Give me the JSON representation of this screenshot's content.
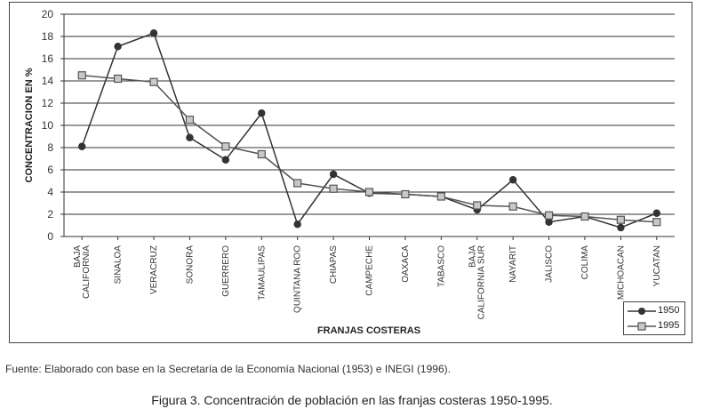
{
  "chart_data": {
    "type": "line",
    "ylabel": "CONCENTRACION EN %",
    "xlabel": "FRANJAS COSTERAS",
    "ylim": [
      0,
      20
    ],
    "yticks": [
      "0",
      "2",
      "4",
      "6",
      "8",
      "10",
      "12",
      "14",
      "16",
      "18",
      "20"
    ],
    "grid": true,
    "legend_position": "bottom-right",
    "categories": [
      [
        "BAJA",
        "CALIFORNIA"
      ],
      [
        "SINALOA"
      ],
      [
        "VERACRUZ"
      ],
      [
        "SONORA"
      ],
      [
        "GUERRERO"
      ],
      [
        "TAMAULIPAS"
      ],
      [
        "QUINTANA ROO"
      ],
      [
        "CHIAPAS"
      ],
      [
        "CAMPECHE"
      ],
      [
        "OAXACA"
      ],
      [
        "TABASCO"
      ],
      [
        "BAJA",
        "CALIFORNIA SUR"
      ],
      [
        "NAYARIT"
      ],
      [
        "JALISCO"
      ],
      [
        "COLIMA"
      ],
      [
        "MICHOACAN"
      ],
      [
        "YUCATAN"
      ]
    ],
    "series": [
      {
        "name": "1950",
        "marker": "circle",
        "color": "#333333",
        "values": [
          8.1,
          17.1,
          18.3,
          8.9,
          6.9,
          11.1,
          1.1,
          5.6,
          3.9,
          3.8,
          3.6,
          2.4,
          5.1,
          1.3,
          1.8,
          0.8,
          2.1
        ]
      },
      {
        "name": "1995",
        "marker": "square",
        "color": "#555555",
        "values": [
          14.5,
          14.2,
          13.9,
          10.5,
          8.1,
          7.4,
          4.8,
          4.3,
          4.0,
          3.8,
          3.6,
          2.8,
          2.7,
          1.9,
          1.8,
          1.5,
          1.3
        ]
      }
    ]
  },
  "source_note": "Fuente: Elaborado con base en la Secretaría de la Economía Nacional (1953) e INEGI (1996).",
  "figure_caption": "Figura 3. Concentración de población en las franjas costeras 1950-1995."
}
